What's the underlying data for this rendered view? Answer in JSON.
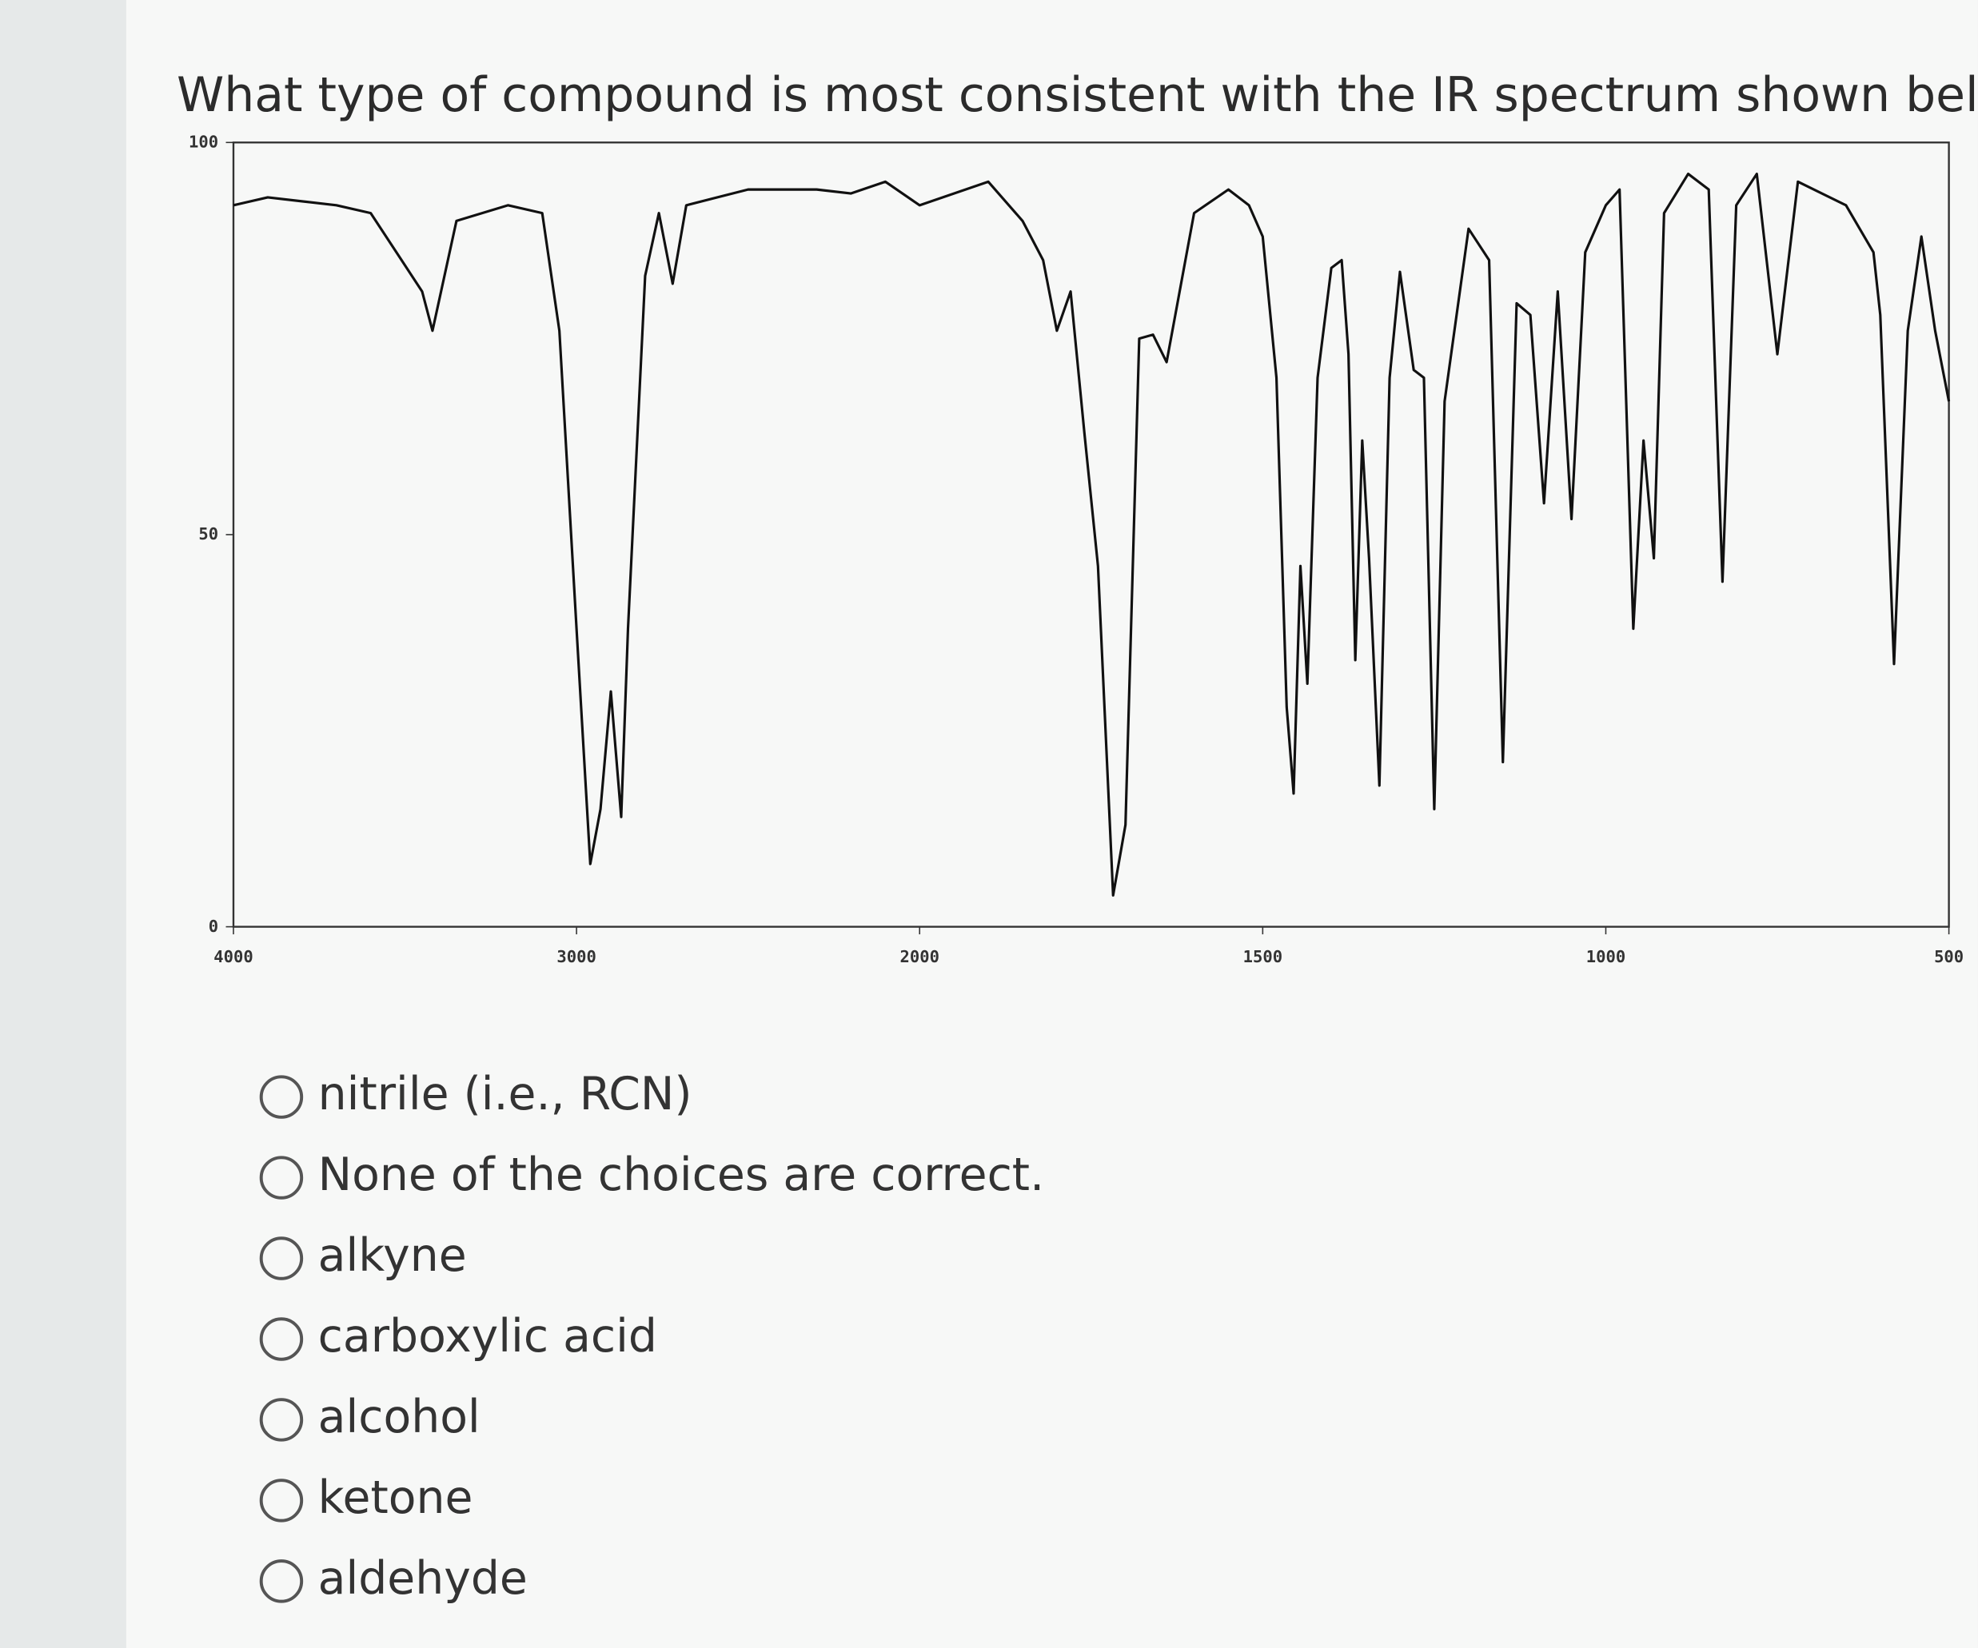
{
  "question": "What type of compound is most consistent with the IR spectrum shown below?",
  "chart_data": {
    "type": "line",
    "color": "#111111",
    "x": [
      4000,
      3900,
      3700,
      3600,
      3450,
      3420,
      3350,
      3200,
      3100,
      3050,
      3000,
      2960,
      2930,
      2900,
      2870,
      2850,
      2800,
      2760,
      2720,
      2680,
      2500,
      2300,
      2200,
      2100,
      2000,
      1900,
      1850,
      1820,
      1800,
      1780,
      1760,
      1740,
      1718,
      1700,
      1680,
      1660,
      1640,
      1600,
      1550,
      1520,
      1500,
      1480,
      1465,
      1455,
      1445,
      1435,
      1420,
      1400,
      1385,
      1375,
      1365,
      1355,
      1345,
      1330,
      1315,
      1300,
      1280,
      1265,
      1250,
      1235,
      1200,
      1170,
      1150,
      1130,
      1110,
      1090,
      1070,
      1050,
      1030,
      1000,
      980,
      960,
      945,
      930,
      915,
      880,
      850,
      830,
      810,
      780,
      750,
      720,
      650,
      610,
      600,
      580,
      560,
      540,
      520,
      500
    ],
    "values": [
      92,
      93,
      92,
      91,
      81,
      76,
      90,
      92,
      91,
      76,
      38,
      8,
      15,
      30,
      14,
      38,
      83,
      91,
      82,
      92,
      94,
      94,
      93.5,
      95,
      92,
      95,
      90,
      85,
      76,
      81,
      63,
      46,
      4,
      13,
      75,
      75.5,
      72,
      91,
      94,
      92,
      88,
      70,
      28,
      17,
      46,
      31,
      70,
      84,
      85,
      73,
      34,
      62,
      47,
      18,
      70,
      83.5,
      71,
      70,
      15,
      67,
      89,
      85,
      21,
      79.5,
      78,
      54,
      81,
      52,
      86,
      92,
      94,
      38,
      62,
      47,
      91,
      96,
      94,
      44,
      92,
      96,
      73,
      95,
      92,
      86,
      78,
      33.5,
      76,
      88,
      76,
      67
    ],
    "xlim": [
      4000,
      500
    ],
    "xticks": [
      4000,
      3000,
      2000,
      1500,
      1000,
      500
    ],
    "ylim": [
      0,
      100
    ],
    "yticks": [
      0,
      50,
      100
    ]
  },
  "options": [
    "nitrile (i.e., RCN)",
    "None of the choices are correct.",
    "alkyne",
    "carboxylic acid",
    "alcohol",
    "ketone",
    "aldehyde"
  ]
}
